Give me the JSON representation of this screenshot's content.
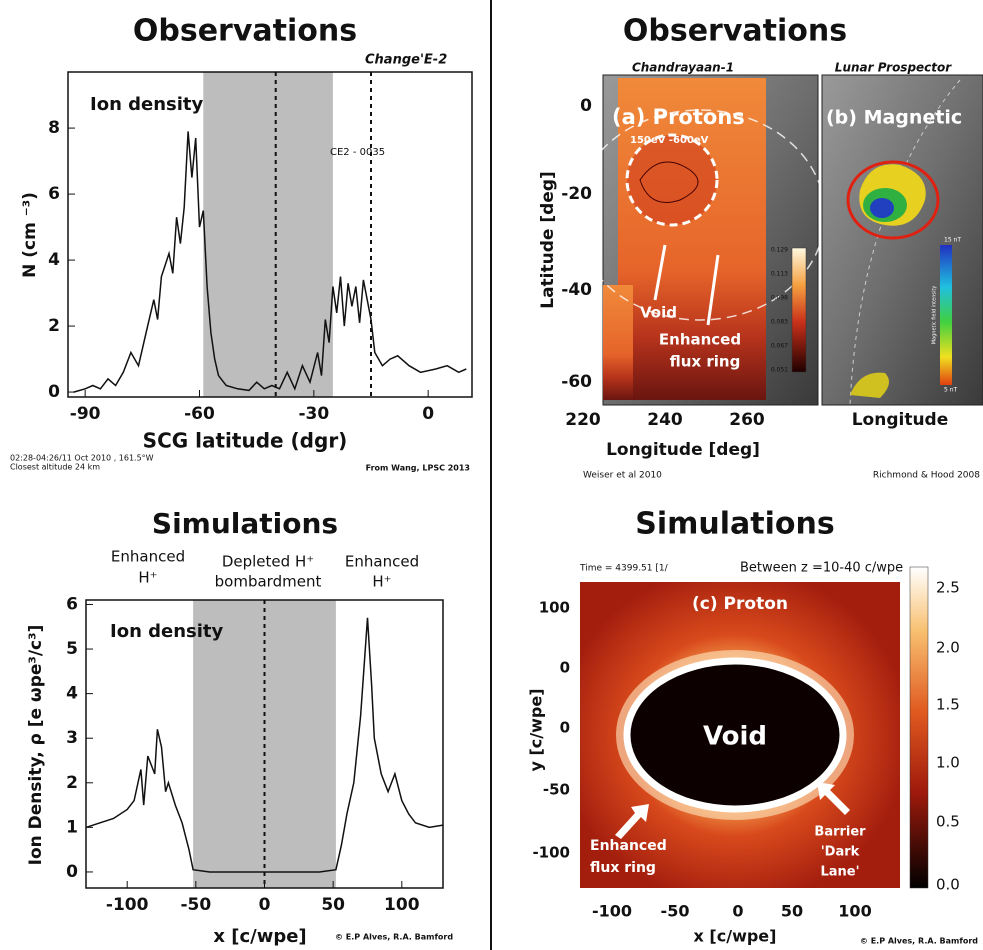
{
  "chart_data": [
    {
      "type": "line",
      "title": "Observations",
      "subtitle": "Change'E-2",
      "annotations": [
        "Ion density",
        "CE2 - 0035"
      ],
      "xlabel": "SCG latitude (dgr)",
      "ylabel": "N (cm ⁻³)",
      "x": [
        -93,
        -90,
        -88,
        -86,
        -84,
        -82,
        -80,
        -78,
        -76,
        -74,
        -72,
        -71,
        -70,
        -68,
        -67,
        -66,
        -65,
        -64,
        -63,
        -62,
        -61,
        -60,
        -59,
        -58,
        -57,
        -56,
        -55,
        -53,
        -50,
        -47,
        -45,
        -43,
        -41,
        -39,
        -37,
        -35,
        -33,
        -31,
        -29,
        -28,
        -27,
        -26,
        -25,
        -24,
        -23,
        -22,
        -21,
        -20,
        -19,
        -18,
        -17,
        -16,
        -15,
        -14,
        -12,
        -10,
        -8,
        -5,
        -2,
        2,
        5,
        8,
        10
      ],
      "values": [
        0,
        0.1,
        0.2,
        0.1,
        0.4,
        0.2,
        0.6,
        1.2,
        0.8,
        1.8,
        2.8,
        2.2,
        3.5,
        4.2,
        3.6,
        5.3,
        4.5,
        5.6,
        7.9,
        6.5,
        7.7,
        5.0,
        5.5,
        3.2,
        1.8,
        1.0,
        0.5,
        0.2,
        0.1,
        0.05,
        0.3,
        0.1,
        0.2,
        0.1,
        0.6,
        0.1,
        0.8,
        0.3,
        1.2,
        0.5,
        2.2,
        1.5,
        3.2,
        2.4,
        3.5,
        2.0,
        3.3,
        2.6,
        3.2,
        2.1,
        3.4,
        2.8,
        2.2,
        1.2,
        0.8,
        1.0,
        1.1,
        0.8,
        0.6,
        0.7,
        0.8,
        0.6,
        0.7
      ],
      "color": "#111111",
      "shade": [
        -59,
        -25
      ],
      "vlines": [
        -40,
        -15
      ],
      "xlim": [
        -94.5,
        11.5
      ],
      "ylim": [
        -0.15,
        9.7
      ],
      "xticks": [
        -90,
        -60,
        -30,
        0
      ],
      "yticks": [
        0,
        2,
        4,
        6,
        8
      ],
      "notes": [
        "02:28-04:26/11 Oct 2010 , 161.5°W",
        "Closest altitude 24 km",
        "From Wang, LPSC 2013"
      ]
    },
    {
      "type": "line",
      "title": "Simulations",
      "annotations": [
        "Enhanced",
        "H⁺",
        "Depleted H⁺",
        "bombardment",
        "Enhanced",
        "H⁺",
        "Ion density"
      ],
      "xlabel": "x [c/wpe]",
      "ylabel": "Ion Density, ρ [e ωpe³/c³]",
      "x": [
        -130,
        -120,
        -110,
        -100,
        -95,
        -90,
        -88,
        -85,
        -80,
        -78,
        -75,
        -72,
        -70,
        -65,
        -60,
        -55,
        -52,
        -40,
        0,
        40,
        52,
        56,
        60,
        65,
        70,
        75,
        78,
        80,
        85,
        90,
        95,
        100,
        105,
        110,
        120,
        130
      ],
      "values": [
        1.0,
        1.1,
        1.2,
        1.4,
        1.6,
        2.3,
        1.5,
        2.6,
        2.2,
        3.2,
        2.8,
        1.8,
        2.0,
        1.5,
        1.1,
        0.5,
        0.05,
        0,
        0,
        0,
        0.05,
        0.6,
        1.3,
        2.0,
        3.5,
        5.7,
        4.2,
        3.0,
        2.2,
        1.8,
        2.2,
        1.6,
        1.3,
        1.1,
        1.0,
        1.05
      ],
      "color": "#111111",
      "shade": [
        -52,
        52
      ],
      "vlines": [
        0
      ],
      "xlim": [
        -130,
        130
      ],
      "ylim": [
        -0.36,
        6.1
      ],
      "xticks": [
        -100,
        -50,
        0,
        50,
        100
      ],
      "yticks": [
        0,
        1,
        2,
        3,
        4,
        5,
        6
      ],
      "notes": [
        "© E.P Alves, R.A. Bamford"
      ]
    }
  ],
  "maps": {
    "title": "Observations",
    "a": {
      "source": "Chandrayaan-1",
      "label": "(a) Protons",
      "energy": "150eV -600eV",
      "void": "Void",
      "ring": [
        "Enhanced",
        "flux ring"
      ],
      "yticks": [
        "0",
        "-20",
        "-40",
        "-60"
      ],
      "xticks": [
        "220",
        "240",
        "260"
      ],
      "ylabel": "Latitude [deg]",
      "xlabel": "Longitude [deg]",
      "colorbar": [
        "0.129",
        "0.113",
        "0.098",
        "0.083",
        "0.067",
        "0.051"
      ],
      "credit": "Weiser et al 2010"
    },
    "b": {
      "source": "Lunar Prospector",
      "label": "(b) Magnetic",
      "xlabel": "Longitude",
      "colorbar": [
        "15 nT",
        "5 nT"
      ],
      "colorbar_label": "Magnetic field intensity",
      "credit": "Richmond & Hood 2008"
    }
  },
  "simulation_map": {
    "title": "Simulations",
    "time": "Time = 4399.51 [1/",
    "range": "Between z =10-40 c/wpe",
    "label": "(c) Proton",
    "void": "Void",
    "ring": [
      "Enhanced",
      "flux ring"
    ],
    "barrier": [
      "Barrier",
      "'Dark",
      "Lane'"
    ],
    "yticks": [
      "100",
      "0",
      "0",
      "-50",
      "-100"
    ],
    "xticks": [
      "-100",
      "-50",
      "0",
      "50",
      "100"
    ],
    "ylabel": "y [c/wpe]",
    "xlabel": "x [c/wpe]",
    "colorbar": [
      "2.5",
      "2.0",
      "1.5",
      "1.0",
      "0.5",
      "0.0"
    ],
    "credit": "© E.P Alves, R.A. Bamford"
  }
}
